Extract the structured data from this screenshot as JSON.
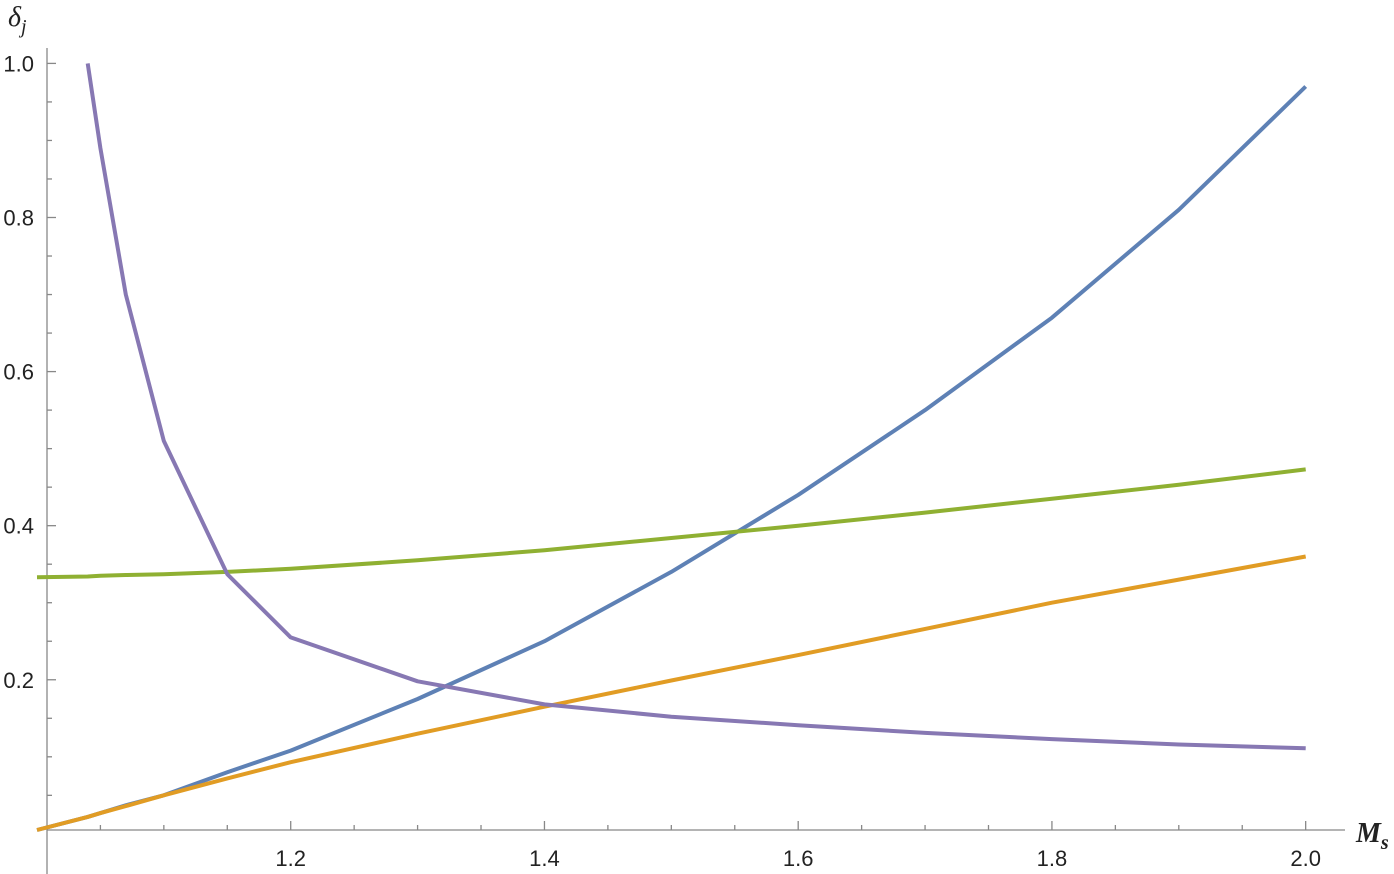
{
  "chart_data": {
    "type": "line",
    "xlabel": {
      "base": "M",
      "sub": "s"
    },
    "ylabel": {
      "base": "δ",
      "sub": "j"
    },
    "x": [
      1.0,
      1.04,
      1.05,
      1.07,
      1.1,
      1.15,
      1.2,
      1.3,
      1.4,
      1.5,
      1.6,
      1.7,
      1.8,
      1.9,
      2.0
    ],
    "series": [
      {
        "color": "#5e81b5",
        "values": [
          0.005,
          0.022,
          0.027,
          0.037,
          0.05,
          0.08,
          0.108,
          0.175,
          0.25,
          0.34,
          0.44,
          0.55,
          0.67,
          0.81,
          0.97
        ]
      },
      {
        "color": "#e19c24",
        "values": [
          0.005,
          0.022,
          0.027,
          0.036,
          0.05,
          0.072,
          0.093,
          0.13,
          0.165,
          0.199,
          0.232,
          0.266,
          0.3,
          0.33,
          0.36
        ]
      },
      {
        "color": "#8fb032",
        "values": [
          0.333,
          0.334,
          0.335,
          0.336,
          0.337,
          0.34,
          0.344,
          0.355,
          0.368,
          0.384,
          0.4,
          0.417,
          0.435,
          0.453,
          0.473
        ]
      },
      {
        "color": "#8778b3",
        "values": [
          null,
          1.0,
          0.89,
          0.7,
          0.51,
          0.337,
          0.255,
          0.198,
          0.168,
          0.152,
          0.141,
          0.131,
          0.123,
          0.116,
          0.111
        ]
      }
    ],
    "xlim": [
      1.0079,
      2.031
    ],
    "ylim": [
      0.005,
      1.02
    ],
    "xticks": [
      1.2,
      1.4,
      1.6,
      1.8,
      {
        "value": 2,
        "label": "2.0"
      }
    ],
    "yticks": [
      0.2,
      0.4,
      0.6,
      0.8,
      {
        "value": 1,
        "label": "1.0"
      }
    ],
    "xticks_minor": [
      1.05,
      1.1,
      1.15,
      1.25,
      1.3,
      1.35,
      1.45,
      1.5,
      1.55,
      1.65,
      1.7,
      1.75,
      1.85,
      1.9,
      1.95
    ],
    "yticks_minor": [
      0.05,
      0.1,
      0.15,
      0.25,
      0.3,
      0.35,
      0.45,
      0.5,
      0.55,
      0.65,
      0.7,
      0.75,
      0.85,
      0.9,
      0.95
    ]
  }
}
